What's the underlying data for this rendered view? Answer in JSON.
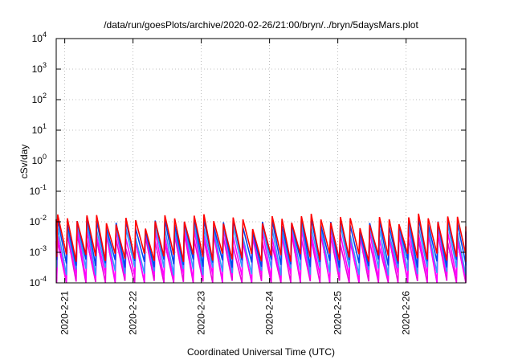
{
  "chart_data": {
    "type": "line",
    "title": "/data/run/goesPlots/archive/2020-02-26/21:00/bryn/../bryn/5daysMars.plot",
    "xlabel": "Coordinated Universal Time (UTC)",
    "ylabel": "cSv/day",
    "y_scale": "log",
    "ylim": [
      0.0001,
      10000
    ],
    "y_ticks": [
      {
        "value": 0.0001,
        "base": "10",
        "exp": "-4"
      },
      {
        "value": 0.001,
        "base": "10",
        "exp": "-3"
      },
      {
        "value": 0.01,
        "base": "10",
        "exp": "-2"
      },
      {
        "value": 0.1,
        "base": "10",
        "exp": "-1"
      },
      {
        "value": 1,
        "base": "10",
        "exp": "0"
      },
      {
        "value": 10,
        "base": "10",
        "exp": "1"
      },
      {
        "value": 100,
        "base": "10",
        "exp": "2"
      },
      {
        "value": 1000,
        "base": "10",
        "exp": "3"
      },
      {
        "value": 10000,
        "base": "10",
        "exp": "4"
      }
    ],
    "xlim": [
      "2020-02-20T21:00",
      "2020-02-26T21:00"
    ],
    "x_ticks": [
      {
        "value": "2020-02-21T00:00",
        "label": "2020-2-21"
      },
      {
        "value": "2020-02-22T00:00",
        "label": "2020-2-22"
      },
      {
        "value": "2020-02-23T00:00",
        "label": "2020-2-23"
      },
      {
        "value": "2020-02-24T00:00",
        "label": "2020-2-24"
      },
      {
        "value": "2020-02-25T00:00",
        "label": "2020-2-25"
      },
      {
        "value": "2020-02-26T00:00",
        "label": "2020-2-26"
      }
    ],
    "grid": true,
    "legend": "none",
    "series_colors": [
      "#ff0000",
      "#0044ee",
      "#3399ff",
      "#ff00ff",
      "#ee00dd"
    ],
    "pattern": {
      "shape": "sawtooth",
      "cycles_per_day": 7,
      "cycle_start": "2020-02-20T21:30",
      "peak": [
        0.012,
        0.0095,
        0.0065,
        0.0045,
        0.0028
      ],
      "trough": [
        0.0007,
        0.00045,
        0.00025,
        0.00015,
        9e-05
      ]
    }
  }
}
